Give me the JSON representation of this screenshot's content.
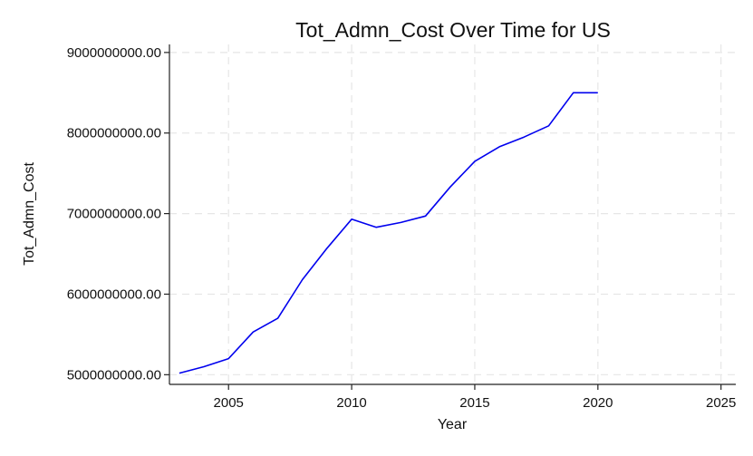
{
  "chart_data": {
    "type": "line",
    "title": "Tot_Admn_Cost Over Time for US",
    "xlabel": "Year",
    "ylabel": "Tot_Admn_Cost",
    "xlim": [
      2002.6,
      2025.6
    ],
    "ylim": [
      4880000000,
      9100000000
    ],
    "x_ticks": [
      2005,
      2010,
      2015,
      2020,
      2025
    ],
    "x_tick_labels": [
      "2005",
      "2010",
      "2015",
      "2020",
      "2025"
    ],
    "y_ticks": [
      5000000000,
      6000000000,
      7000000000,
      8000000000,
      9000000000
    ],
    "y_tick_labels": [
      "5000000000.00",
      "6000000000.00",
      "7000000000.00",
      "8000000000.00",
      "9000000000.00"
    ],
    "grid": true,
    "series": [
      {
        "color": "#0000ee",
        "x": [
          2003,
          2004,
          2005,
          2006,
          2007,
          2008,
          2009,
          2010,
          2011,
          2012,
          2013,
          2014,
          2015,
          2016,
          2017,
          2018,
          2019,
          2020
        ],
        "y": [
          5020000000,
          5100000000,
          5200000000,
          5530000000,
          5700000000,
          6180000000,
          6570000000,
          6930000000,
          6830000000,
          6890000000,
          6970000000,
          7330000000,
          7650000000,
          7830000000,
          7950000000,
          8090000000,
          8500000000,
          8500000000
        ]
      }
    ]
  }
}
